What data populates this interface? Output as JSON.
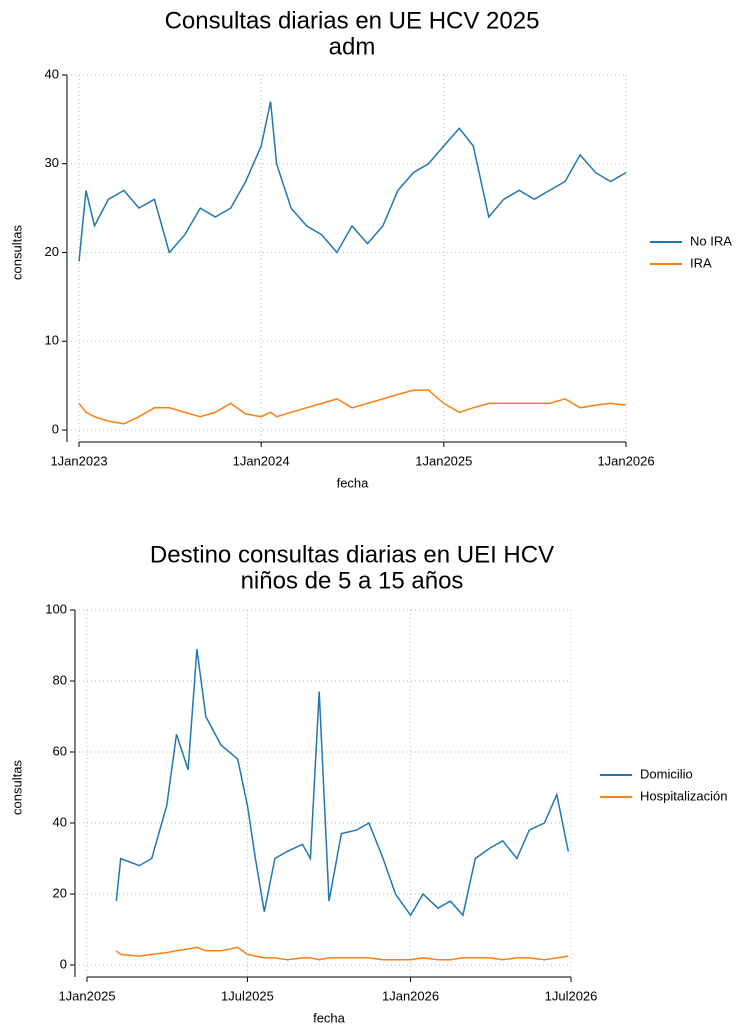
{
  "chart_data": [
    {
      "type": "line",
      "title": "Consultas diarias en UE HCV 2025",
      "subtitle": "adm",
      "x_label": "fecha",
      "y_label": "consultas",
      "x": [
        "2023-01-01",
        "2023-01-15",
        "2023-02-01",
        "2023-03-01",
        "2023-04-01",
        "2023-05-01",
        "2023-06-01",
        "2023-07-01",
        "2023-08-01",
        "2023-09-01",
        "2023-10-01",
        "2023-11-01",
        "2023-12-01",
        "2024-01-01",
        "2024-01-20",
        "2024-02-01",
        "2024-03-01",
        "2024-04-01",
        "2024-05-01",
        "2024-06-01",
        "2024-07-01",
        "2024-08-01",
        "2024-09-01",
        "2024-10-01",
        "2024-11-01",
        "2024-12-01",
        "2025-01-01",
        "2025-02-01",
        "2025-03-01",
        "2025-04-01",
        "2025-05-01",
        "2025-06-01",
        "2025-07-01",
        "2025-08-01",
        "2025-09-01",
        "2025-10-01",
        "2025-11-01",
        "2025-12-01",
        "2026-01-01"
      ],
      "series": [
        {
          "name": "No IRA",
          "color": "#1f77b4",
          "values": [
            19,
            27,
            23,
            26,
            27,
            25,
            26,
            20,
            22,
            25,
            24,
            25,
            28,
            32,
            37,
            30,
            25,
            23,
            22,
            20,
            23,
            21,
            23,
            27,
            29,
            30,
            32,
            34,
            32,
            24,
            26,
            27,
            26,
            27,
            28,
            31,
            29,
            28,
            29
          ]
        },
        {
          "name": "IRA",
          "color": "#ff7f0e",
          "values": [
            3,
            2,
            1.5,
            1,
            0.7,
            1.5,
            2.5,
            2.5,
            2,
            1.5,
            2,
            3,
            1.8,
            1.5,
            2,
            1.5,
            2,
            2.5,
            3,
            3.5,
            2.5,
            3,
            3.5,
            4,
            4.5,
            4.5,
            3,
            2,
            2.5,
            3,
            3,
            3,
            3,
            3,
            3.5,
            2.5,
            2.8,
            3,
            2.8
          ]
        }
      ],
      "xlim": [
        "2023-01-01",
        "2026-01-01"
      ],
      "xticks": [
        {
          "value": "2023-01-01",
          "label": "1Jan2023"
        },
        {
          "value": "2024-01-01",
          "label": "1Jan2024"
        },
        {
          "value": "2025-01-01",
          "label": "1Jan2025"
        },
        {
          "value": "2026-01-01",
          "label": "1Jan2026"
        }
      ],
      "ylim": [
        0,
        40
      ],
      "yticks": [
        0,
        10,
        20,
        30,
        40
      ],
      "grid": true,
      "legend": "right"
    },
    {
      "type": "line",
      "title": "Destino consultas diarias en UEI HCV",
      "subtitle": "niños de 5 a 15 años",
      "x_label": "fecha",
      "y_label": "consultas",
      "x": [
        "2025-02-03",
        "2025-02-08",
        "2025-03-01",
        "2025-03-15",
        "2025-04-01",
        "2025-04-12",
        "2025-04-25",
        "2025-05-05",
        "2025-05-15",
        "2025-06-01",
        "2025-06-20",
        "2025-07-01",
        "2025-07-10",
        "2025-07-20",
        "2025-08-01",
        "2025-08-15",
        "2025-09-01",
        "2025-09-10",
        "2025-09-20",
        "2025-10-01",
        "2025-10-15",
        "2025-11-01",
        "2025-11-15",
        "2025-12-01",
        "2025-12-15",
        "2026-01-01",
        "2026-01-15",
        "2026-02-01",
        "2026-02-15",
        "2026-03-01",
        "2026-03-15",
        "2026-04-01",
        "2026-04-15",
        "2026-05-01",
        "2026-05-15",
        "2026-06-01",
        "2026-06-15",
        "2026-06-28"
      ],
      "series": [
        {
          "name": "Domicilio",
          "color": "#1f77b4",
          "values": [
            18,
            30,
            28,
            30,
            45,
            65,
            55,
            89,
            70,
            62,
            58,
            45,
            30,
            15,
            30,
            32,
            34,
            30,
            77,
            18,
            37,
            38,
            40,
            30,
            20,
            14,
            20,
            16,
            18,
            14,
            30,
            33,
            35,
            30,
            38,
            40,
            48,
            32
          ]
        },
        {
          "name": "Hospitalización",
          "color": "#ff7f0e",
          "values": [
            4,
            3,
            2.5,
            3,
            3.5,
            4,
            4.5,
            5,
            4,
            4,
            5,
            3,
            2.5,
            2,
            2,
            1.5,
            2,
            2,
            1.5,
            2,
            2,
            2,
            2,
            1.5,
            1.5,
            1.5,
            2,
            1.5,
            1.5,
            2,
            2,
            2,
            1.5,
            2,
            2,
            1.5,
            2,
            2.5
          ]
        }
      ],
      "xlim": [
        "2025-01-01",
        "2026-07-01"
      ],
      "xticks": [
        {
          "value": "2025-01-01",
          "label": "1Jan2025"
        },
        {
          "value": "2025-07-01",
          "label": "1Jul2025"
        },
        {
          "value": "2026-01-01",
          "label": "1Jan2026"
        },
        {
          "value": "2026-07-01",
          "label": "1Jul2026"
        }
      ],
      "ylim": [
        0,
        100
      ],
      "yticks": [
        0,
        20,
        40,
        60,
        80,
        100
      ],
      "grid": true,
      "legend": "right"
    }
  ]
}
